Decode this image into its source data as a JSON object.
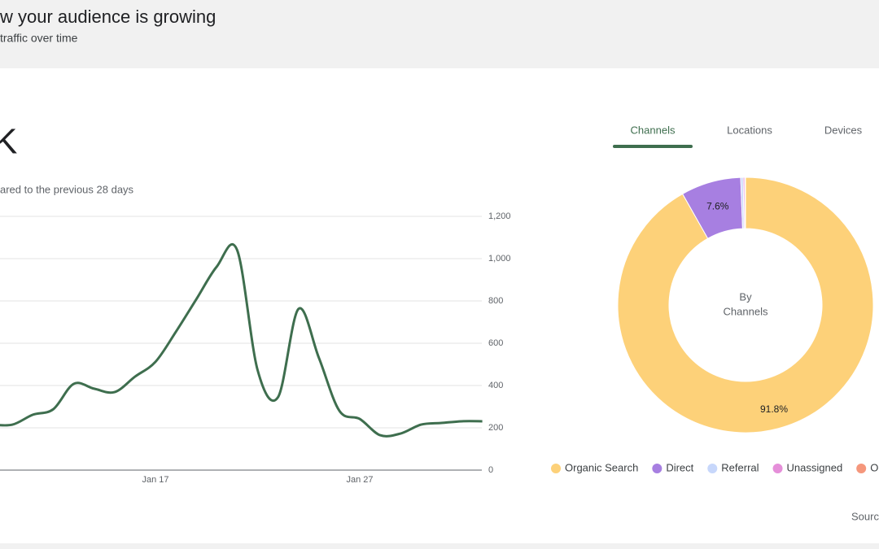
{
  "header": {
    "title": "w your audience is growing",
    "subtitle": "traffic over time"
  },
  "summary": {
    "value": "K",
    "comparison": "ared to the previous 28 days"
  },
  "tabs": [
    "Channels",
    "Locations",
    "Devices"
  ],
  "source": "Sourc",
  "chart_data": [
    {
      "type": "line",
      "categories": [
        null,
        null,
        null,
        null,
        null,
        null,
        null,
        null,
        "Jan 17",
        null,
        null,
        null,
        null,
        null,
        null,
        null,
        null,
        null,
        "Jan 27",
        null,
        null,
        null,
        null,
        null,
        null
      ],
      "series": [
        {
          "color": "#3e6e4e",
          "values": [
            215,
            215,
            262,
            288,
            408,
            385,
            369,
            442,
            512,
            654,
            808,
            962,
            1040,
            473,
            345,
            762,
            531,
            281,
            242,
            165,
            173,
            215,
            223,
            231,
            231
          ]
        }
      ],
      "ylim": [
        0,
        1200
      ],
      "yticks": [
        0,
        200,
        400,
        600,
        800,
        {
          "value": 1000,
          "label": "1,000"
        },
        {
          "value": 1200,
          "label": "1,200"
        }
      ],
      "grid": true
    },
    {
      "type": "pie",
      "center_label": [
        "By",
        "Channels"
      ],
      "categories": [
        "Organic Search",
        "Direct",
        "Referral",
        "Unassigned",
        "Org"
      ],
      "values": [
        91.8,
        7.6,
        0.3,
        0.2,
        0.1
      ],
      "value_labels": [
        "91.8%",
        "7.6%",
        null,
        null,
        null
      ],
      "colors": [
        "#fdd179",
        "#a77fe1",
        "#c7d7fb",
        "#e58fd9",
        "#f5977c"
      ]
    }
  ]
}
